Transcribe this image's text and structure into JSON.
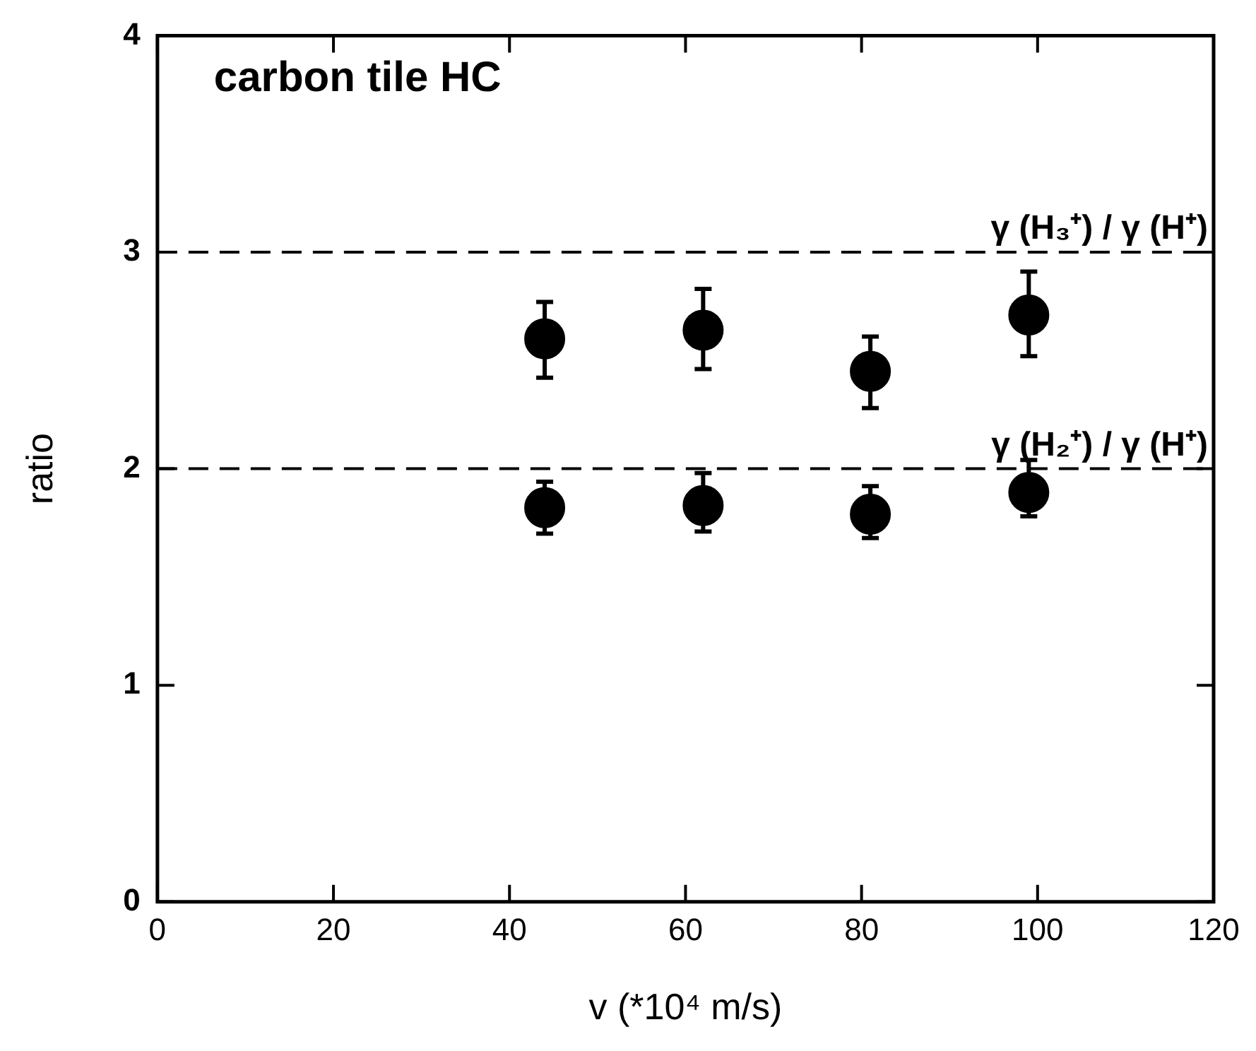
{
  "chart_data": {
    "type": "scatter",
    "xlabel": "v (*10⁴ m/s)",
    "ylabel": "ratio",
    "annotations": [
      "carbon tile HC"
    ],
    "xlim": [
      0,
      120
    ],
    "xticks": [
      0,
      20,
      40,
      60,
      80,
      100,
      120
    ],
    "ylim": [
      0,
      4
    ],
    "yticks": [
      0,
      1,
      2,
      3,
      4
    ],
    "grid": false,
    "legend": false,
    "marker": "circle",
    "series": [
      {
        "color": "#000000",
        "x": [
          44,
          62,
          81,
          99
        ],
        "values": [
          2.6,
          2.64,
          2.45,
          2.71
        ],
        "errors": [
          [
            2.42,
            2.77
          ],
          [
            2.46,
            2.83
          ],
          [
            2.28,
            2.61
          ],
          [
            2.52,
            2.91
          ]
        ]
      },
      {
        "color": "#000000",
        "x": [
          44,
          62,
          81,
          99
        ],
        "values": [
          1.82,
          1.83,
          1.79,
          1.89
        ],
        "errors": [
          [
            1.7,
            1.94
          ],
          [
            1.71,
            1.98
          ],
          [
            1.68,
            1.92
          ],
          [
            1.78,
            2.04
          ]
        ]
      }
    ],
    "ref_lines": [
      {
        "axis": "y",
        "value": 3,
        "label": "γ (H₃⁺) / γ (H⁺)",
        "line_style": "dashed",
        "color": "#000000"
      },
      {
        "axis": "y",
        "value": 2,
        "label": "γ (H₂⁺) / γ (H⁺)",
        "line_style": "dashed",
        "color": "#000000"
      }
    ]
  }
}
